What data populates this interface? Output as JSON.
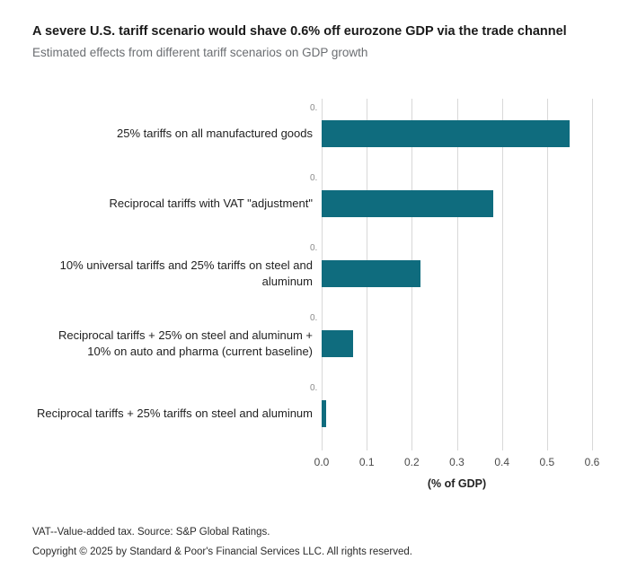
{
  "header": {
    "title": "A severe U.S. tariff scenario would shave 0.6% off eurozone GDP via the trade channel",
    "subtitle": "Estimated effects from different tariff scenarios on GDP growth"
  },
  "chart_data": {
    "type": "bar",
    "orientation": "horizontal",
    "title": "A severe U.S. tariff scenario would shave 0.6% off eurozone GDP via the trade channel",
    "subtitle": "Estimated effects from different tariff scenarios on GDP growth",
    "categories": [
      "25% tariffs on all manufactured goods",
      "Reciprocal tariffs with VAT \"adjustment\"",
      "10% universal tariffs and 25% tariffs on steel and aluminum",
      "Reciprocal tariffs + 25% on steel and aluminum + 10% on auto and pharma (current baseline)",
      "Reciprocal tariffs + 25% tariffs on steel and aluminum"
    ],
    "values": [
      0.55,
      0.38,
      0.22,
      0.07,
      0.01
    ],
    "xlabel": "(% of GDP)",
    "xlim": [
      0,
      0.6
    ],
    "xticks": [
      "0.0",
      "0.1",
      "0.2",
      "0.3",
      "0.4",
      "0.5",
      "0.6"
    ],
    "row_zero_label": "0.",
    "bar_color": "#0f6c7e",
    "gridline_color": "#d8d8d8",
    "grid": true,
    "legend": "none"
  },
  "footer": {
    "note": "VAT--Value-added tax. Source: S&P Global Ratings.",
    "copyright": "Copyright © 2025 by Standard & Poor's Financial Services LLC. All rights reserved."
  }
}
